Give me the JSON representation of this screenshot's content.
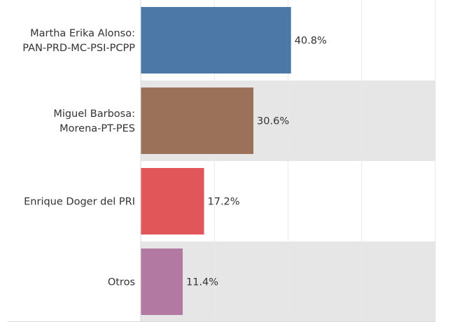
{
  "chart_data": {
    "type": "bar",
    "orientation": "horizontal",
    "title": "",
    "xlabel": "",
    "ylabel": "",
    "xlim": [
      0,
      80
    ],
    "grid": true,
    "legend": "none",
    "categories": [
      [
        "Martha Erika Alonso:",
        "PAN-PRD-MC-PSI-PCPP"
      ],
      [
        "Miguel Barbosa:",
        "Morena-PT-PES"
      ],
      [
        "Enrique Doger del PRI"
      ],
      [
        "Otros"
      ]
    ],
    "values": [
      40.8,
      30.6,
      17.2,
      11.4
    ],
    "value_labels": [
      "40.8%",
      "30.6%",
      "17.2%",
      "11.4%"
    ],
    "colors": [
      "#4c78a8",
      "#9c7159",
      "#e15759",
      "#b279a2"
    ],
    "band_color": "#e6e6e6",
    "grid_color": "#e8e8e8"
  }
}
